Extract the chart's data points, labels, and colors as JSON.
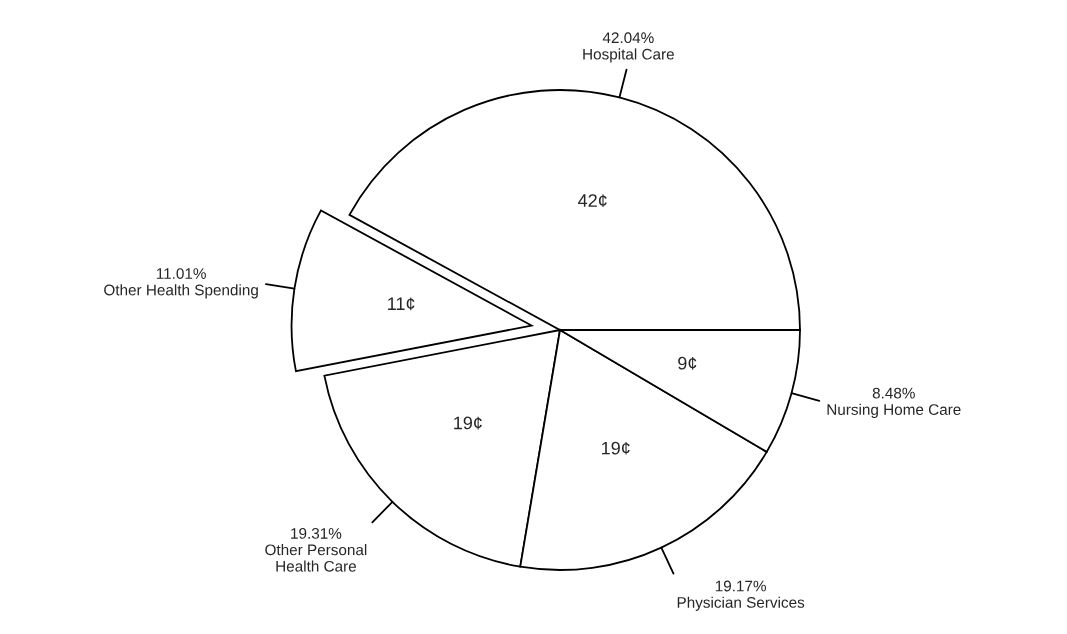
{
  "chart_data": {
    "type": "pie",
    "categories": [
      "Hospital Care",
      "Other Health Spending",
      "Other Personal\nHealth Care",
      "Physician Services",
      "Nursing Home Care"
    ],
    "values": [
      42.04,
      11.01,
      19.31,
      19.17,
      8.48
    ],
    "colors": [
      "#ffffff",
      "#ffffff",
      "#ffffff",
      "#ffffff",
      "#ffffff"
    ],
    "value_labels": [
      "42.04%",
      "11.01%",
      "19.31%",
      "19.17%",
      "8.48%"
    ],
    "annotations": [
      "42¢",
      "11¢",
      "19¢",
      "19¢",
      "9¢"
    ],
    "legend": false
  }
}
